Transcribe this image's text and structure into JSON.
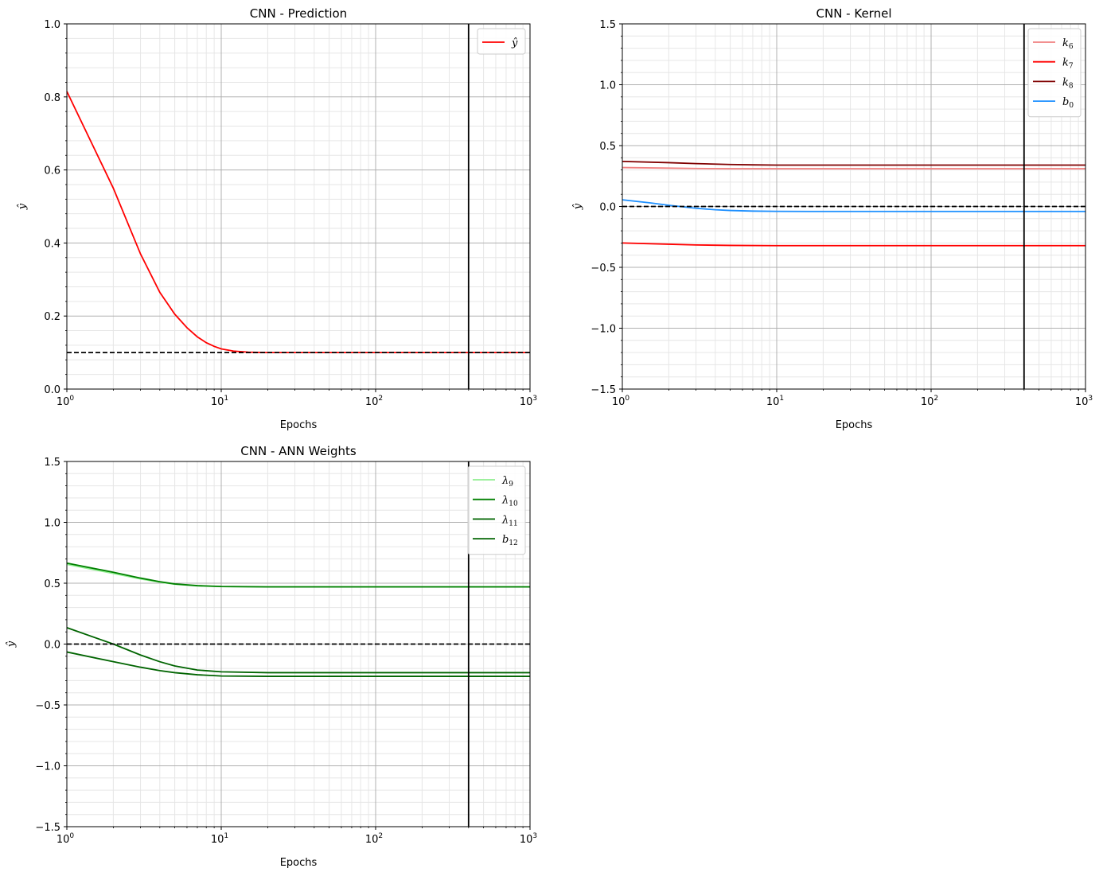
{
  "colors": {
    "red": "#ff0000",
    "lightcoral": "#f08080",
    "maroon": "#800000",
    "dodgerblue": "#1e90ff",
    "lightgreen": "#90ee90",
    "green": "#008000",
    "darkgreen": "#006400"
  },
  "chart_data": [
    {
      "id": "prediction",
      "type": "line",
      "title": "CNN - Prediction",
      "xlabel": "Epochs",
      "ylabel": "ŷ",
      "xscale": "log",
      "xlim": [
        1,
        1000
      ],
      "ylim": [
        0.0,
        1.0
      ],
      "xticks": [
        {
          "base": "10",
          "exp": "0"
        },
        {
          "base": "10",
          "exp": "1"
        },
        {
          "base": "10",
          "exp": "2"
        },
        {
          "base": "10",
          "exp": "3"
        }
      ],
      "yticks": [
        "0.0",
        "0.2",
        "0.4",
        "0.6",
        "0.8",
        "1.0"
      ],
      "hline": 0.1,
      "vline": 400,
      "legend_position": "top-right",
      "series": [
        {
          "name": "ŷ",
          "sym": "ŷ",
          "sub": "",
          "color": "red",
          "x": [
            1,
            2,
            3,
            4,
            5,
            6,
            7,
            8,
            9,
            10,
            12,
            15,
            20,
            30,
            50,
            100,
            1000
          ],
          "y": [
            0.815,
            0.55,
            0.37,
            0.265,
            0.205,
            0.168,
            0.143,
            0.127,
            0.117,
            0.11,
            0.104,
            0.101,
            0.1,
            0.1,
            0.1,
            0.1,
            0.1
          ]
        }
      ]
    },
    {
      "id": "kernel",
      "type": "line",
      "title": "CNN - Kernel",
      "xlabel": "Epochs",
      "ylabel": "ŷ",
      "xscale": "log",
      "xlim": [
        1,
        1000
      ],
      "ylim": [
        -1.5,
        1.5
      ],
      "xticks": [
        {
          "base": "10",
          "exp": "0"
        },
        {
          "base": "10",
          "exp": "1"
        },
        {
          "base": "10",
          "exp": "2"
        },
        {
          "base": "10",
          "exp": "3"
        }
      ],
      "yticks": [
        "−1.5",
        "−1.0",
        "−0.5",
        "0.0",
        "0.5",
        "1.0",
        "1.5"
      ],
      "hline": 0.0,
      "vline": 400,
      "legend_position": "top-right",
      "series": [
        {
          "name": "k6",
          "sym": "k",
          "sub": "6",
          "color": "lightcoral",
          "x": [
            1,
            2,
            3,
            5,
            10,
            30,
            100,
            1000
          ],
          "y": [
            0.32,
            0.315,
            0.312,
            0.31,
            0.31,
            0.31,
            0.31,
            0.31
          ]
        },
        {
          "name": "k7",
          "sym": "k",
          "sub": "7",
          "color": "red",
          "x": [
            1,
            2,
            3,
            5,
            10,
            30,
            100,
            1000
          ],
          "y": [
            -0.3,
            -0.31,
            -0.316,
            -0.32,
            -0.322,
            -0.322,
            -0.322,
            -0.322
          ]
        },
        {
          "name": "k8",
          "sym": "k",
          "sub": "8",
          "color": "maroon",
          "x": [
            1,
            2,
            3,
            5,
            7,
            10,
            30,
            100,
            1000
          ],
          "y": [
            0.37,
            0.36,
            0.352,
            0.345,
            0.342,
            0.34,
            0.34,
            0.34,
            0.34
          ]
        },
        {
          "name": "b0",
          "sym": "b",
          "sub": "0",
          "color": "dodgerblue",
          "x": [
            1,
            1.5,
            2,
            3,
            4,
            5,
            7,
            10,
            20,
            100,
            1000
          ],
          "y": [
            0.055,
            0.03,
            0.01,
            -0.015,
            -0.027,
            -0.033,
            -0.038,
            -0.04,
            -0.041,
            -0.041,
            -0.041
          ]
        }
      ]
    },
    {
      "id": "ann",
      "type": "line",
      "title": "CNN - ANN Weights",
      "xlabel": "Epochs",
      "ylabel": "ŷ",
      "xscale": "log",
      "xlim": [
        1,
        1000
      ],
      "ylim": [
        -1.5,
        1.5
      ],
      "xticks": [
        {
          "base": "10",
          "exp": "0"
        },
        {
          "base": "10",
          "exp": "1"
        },
        {
          "base": "10",
          "exp": "2"
        },
        {
          "base": "10",
          "exp": "3"
        }
      ],
      "yticks": [
        "−1.5",
        "−1.0",
        "−0.5",
        "0.0",
        "0.5",
        "1.0",
        "1.5"
      ],
      "hline": 0.0,
      "vline": 400,
      "legend_position": "top-right",
      "series": [
        {
          "name": "λ9",
          "sym": "λ",
          "sub": "9",
          "color": "lightgreen",
          "x": [
            1,
            2,
            3,
            4,
            5,
            7,
            10,
            20,
            100,
            1000
          ],
          "y": [
            0.655,
            0.58,
            0.535,
            0.508,
            0.492,
            0.478,
            0.472,
            0.47,
            0.47,
            0.47
          ]
        },
        {
          "name": "λ10",
          "sym": "λ",
          "sub": "10",
          "color": "green",
          "x": [
            1,
            2,
            3,
            4,
            5,
            7,
            10,
            20,
            100,
            1000
          ],
          "y": [
            0.665,
            0.59,
            0.542,
            0.512,
            0.494,
            0.48,
            0.473,
            0.47,
            0.47,
            0.47
          ]
        },
        {
          "name": "λ11",
          "sym": "λ",
          "sub": "11",
          "color": "darkgreen",
          "x": [
            1,
            2,
            3,
            4,
            5,
            7,
            10,
            20,
            100,
            1000
          ],
          "y": [
            0.135,
            0.0,
            -0.09,
            -0.145,
            -0.18,
            -0.213,
            -0.228,
            -0.235,
            -0.235,
            -0.235
          ]
        },
        {
          "name": "b12",
          "sym": "b",
          "sub": "12",
          "color": "darkgreen",
          "x": [
            1,
            2,
            3,
            4,
            5,
            7,
            10,
            20,
            100,
            1000
          ],
          "y": [
            -0.065,
            -0.145,
            -0.19,
            -0.218,
            -0.235,
            -0.252,
            -0.262,
            -0.265,
            -0.265,
            -0.265
          ]
        }
      ]
    }
  ]
}
